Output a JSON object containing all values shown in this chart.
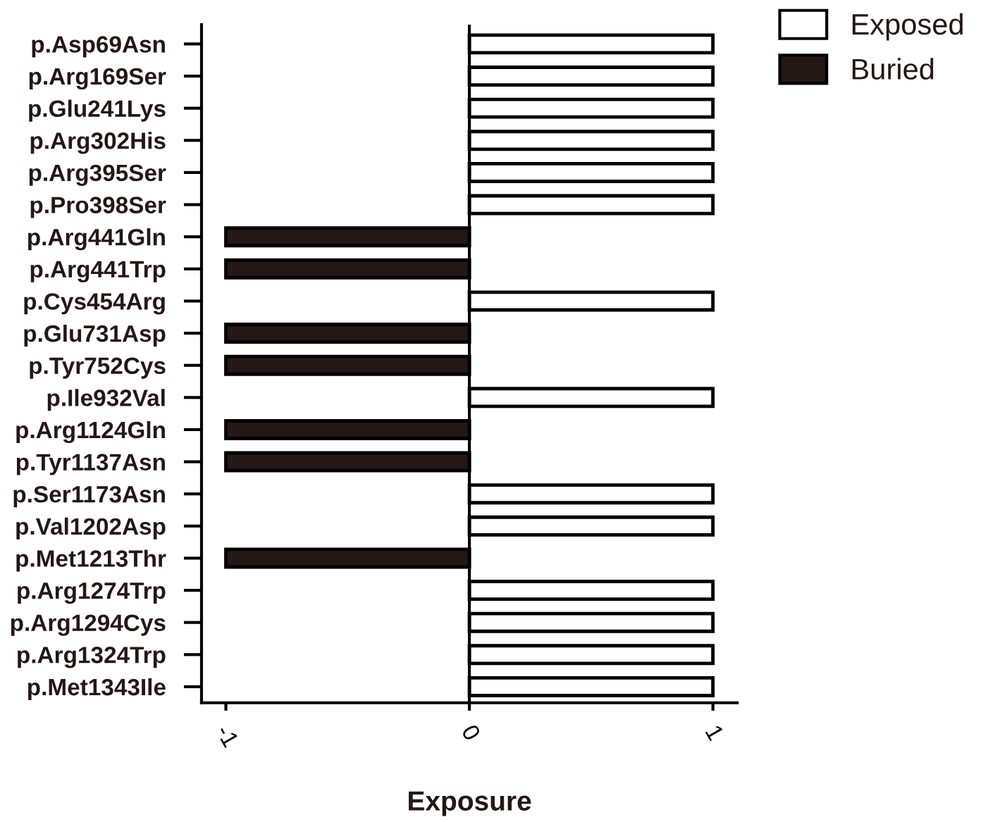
{
  "chart_data": {
    "type": "bar",
    "orientation": "horizontal",
    "categories": [
      "p.Asp69Asn",
      "p.Arg169Ser",
      "p.Glu241Lys",
      "p.Arg302His",
      "p.Arg395Ser",
      "p.Pro398Ser",
      "p.Arg441Gln",
      "p.Arg441Trp",
      "p.Cys454Arg",
      "p.Glu731Asp",
      "p.Tyr752Cys",
      "p.Ile932Val",
      "p.Arg1124Gln",
      "p.Tyr1137Asn",
      "p.Ser1173Asn",
      "p.Val1202Asp",
      "p.Met1213Thr",
      "p.Arg1274Trp",
      "p.Arg1294Cys",
      "p.Arg1324Trp",
      "p.Met1343Ile"
    ],
    "series": [
      {
        "name": "Exposed",
        "color": "#ffffff",
        "values": [
          1,
          1,
          1,
          1,
          1,
          1,
          null,
          null,
          1,
          null,
          null,
          1,
          null,
          null,
          1,
          1,
          null,
          1,
          1,
          1,
          1
        ]
      },
      {
        "name": "Buried",
        "color": "#231815",
        "values": [
          null,
          null,
          null,
          null,
          null,
          null,
          -1,
          -1,
          null,
          -1,
          -1,
          null,
          -1,
          -1,
          null,
          null,
          -1,
          null,
          null,
          null,
          null
        ]
      }
    ],
    "xlim": [
      -1.1,
      1.1
    ],
    "xticks": [
      -1,
      0,
      1
    ],
    "xlabel": "Exposure",
    "grid": false,
    "ref_lines": [
      {
        "axis": "x",
        "value": 0,
        "color": "#000000"
      }
    ],
    "legend": "top right"
  }
}
